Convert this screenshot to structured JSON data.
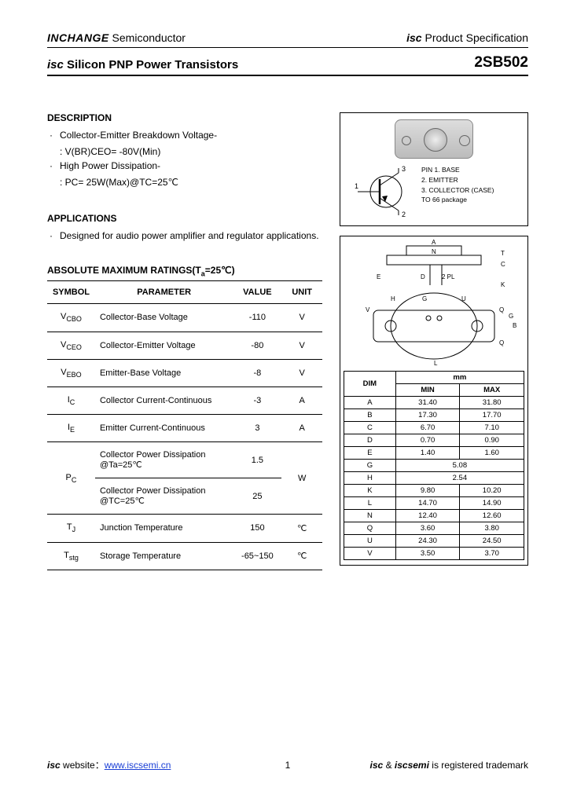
{
  "header": {
    "company_bold": "INCHANGE",
    "company_rest": " Semiconductor",
    "spec_isc": "isc",
    "spec_rest": " Product Specification"
  },
  "title": {
    "isc": "isc",
    "rest": " Silicon PNP Power Transistors",
    "part": "2SB502"
  },
  "description": {
    "heading": "DESCRIPTION",
    "b1": "Collector-Emitter Breakdown Voltage-",
    "b1_sub": ": V(BR)CEO= -80V(Min)",
    "b2": "High Power Dissipation-",
    "b2_sub": ": PC= 25W(Max)@TC=25℃"
  },
  "applications": {
    "heading": "APPLICATIONS",
    "text": "Designed for audio power amplifier and regulator applications."
  },
  "pins": {
    "lead": "PIN",
    "p1": "1. BASE",
    "p2": "2. EMITTER",
    "p3": "3. COLLECTOR (CASE)",
    "pkg": "TO 66 package"
  },
  "ratings": {
    "heading_pre": "ABSOLUTE MAXIMUM RATINGS(T",
    "heading_sub": "a",
    "heading_post": "=25℃)",
    "cols": {
      "symbol": "SYMBOL",
      "param": "PARAMETER",
      "value": "VALUE",
      "unit": "UNIT"
    },
    "rows": [
      {
        "sym": "V",
        "sub": "CBO",
        "param": "Collector-Base Voltage",
        "value": "-110",
        "unit": "V"
      },
      {
        "sym": "V",
        "sub": "CEO",
        "param": "Collector-Emitter Voltage",
        "value": "-80",
        "unit": "V"
      },
      {
        "sym": "V",
        "sub": "EBO",
        "param": "Emitter-Base Voltage",
        "value": "-8",
        "unit": "V"
      },
      {
        "sym": "I",
        "sub": "C",
        "param": "Collector Current-Continuous",
        "value": "-3",
        "unit": "A"
      },
      {
        "sym": "I",
        "sub": "E",
        "param": "Emitter Current-Continuous",
        "value": "3",
        "unit": "A"
      }
    ],
    "pc": {
      "sym": "P",
      "sub": "C",
      "p1": "Collector Power Dissipation @Ta=25℃",
      "v1": "1.5",
      "p2": "Collector Power Dissipation @TC=25℃",
      "v2": "25",
      "unit": "W"
    },
    "tj": {
      "sym": "T",
      "sub": "J",
      "param": "Junction Temperature",
      "value": "150",
      "unit": "℃"
    },
    "tstg": {
      "sym": "T",
      "sub": "stg",
      "param": "Storage Temperature",
      "value": "-65~150",
      "unit": "℃"
    }
  },
  "dims": {
    "unit_header": "mm",
    "cols": {
      "dim": "DIM",
      "min": "MIN",
      "max": "MAX"
    },
    "rows": [
      {
        "d": "A",
        "min": "31.40",
        "max": "31.80"
      },
      {
        "d": "B",
        "min": "17.30",
        "max": "17.70"
      },
      {
        "d": "C",
        "min": "6.70",
        "max": "7.10"
      },
      {
        "d": "D",
        "min": "0.70",
        "max": "0.90"
      },
      {
        "d": "E",
        "min": "1.40",
        "max": "1.60"
      },
      {
        "d": "G",
        "min": "5.08",
        "max": ""
      },
      {
        "d": "H",
        "min": "2.54",
        "max": ""
      },
      {
        "d": "K",
        "min": "9.80",
        "max": "10.20"
      },
      {
        "d": "L",
        "min": "14.70",
        "max": "14.90"
      },
      {
        "d": "N",
        "min": "12.40",
        "max": "12.60"
      },
      {
        "d": "Q",
        "min": "3.60",
        "max": "3.80"
      },
      {
        "d": "U",
        "min": "24.30",
        "max": "24.50"
      },
      {
        "d": "V",
        "min": "3.50",
        "max": "3.70"
      }
    ]
  },
  "footer": {
    "web_isc": "isc",
    "web_text": " website：",
    "url": "www.iscsemi.cn",
    "page": "1",
    "trade_isc1": "isc",
    "trade_amp": " & ",
    "trade_isc2": "iscsemi",
    "trade_rest": " is registered trademark"
  },
  "colors": {
    "text": "#000000",
    "link": "#1a3fd6",
    "border": "#000000"
  }
}
